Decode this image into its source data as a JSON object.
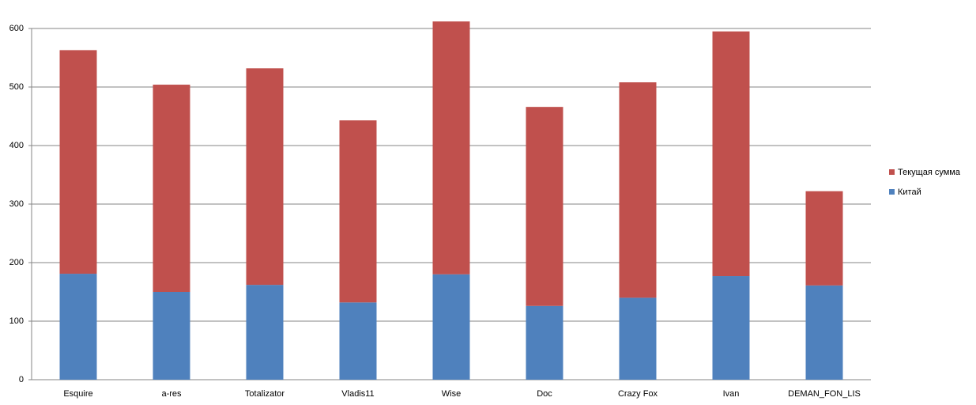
{
  "chart_data": {
    "type": "stacked-bar",
    "categories": [
      "Esquire",
      "a-res",
      "Totalizator",
      "Vladis11",
      "Wise",
      "Doc",
      "Crazy Fox",
      "Ivan",
      "DEMAN_FON_LIS"
    ],
    "series": [
      {
        "name": "Китай",
        "color": "#4f81bd",
        "values": [
          181,
          150,
          162,
          132,
          180,
          126,
          140,
          177,
          161
        ]
      },
      {
        "name": "Текущая сумма",
        "color": "#c0504d",
        "values": [
          382,
          354,
          370,
          311,
          432,
          340,
          368,
          418,
          161
        ]
      }
    ],
    "ylim": [
      0,
      600
    ],
    "yticks": [
      0,
      100,
      200,
      300,
      400,
      500,
      600
    ],
    "grid": true,
    "legend": "right"
  }
}
